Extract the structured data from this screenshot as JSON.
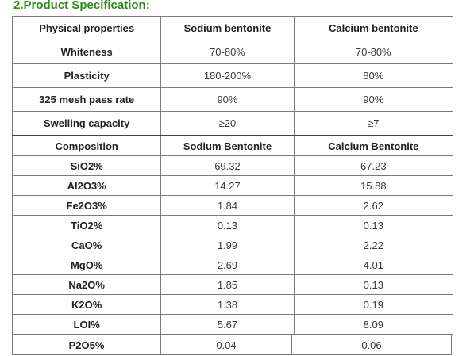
{
  "title": "2.Product Specification:",
  "physical": {
    "headers": [
      "Physical properties",
      "Sodium bentonite",
      "Calcium bentonite"
    ],
    "rows": [
      {
        "label": "Whiteness",
        "sodium": "70-80%",
        "calcium": "70-80%"
      },
      {
        "label": "Plasticity",
        "sodium": "180-200%",
        "calcium": "80%"
      },
      {
        "label": "325 mesh pass rate",
        "sodium": "90%",
        "calcium": "90%"
      },
      {
        "label": "Swelling capacity",
        "sodium": "≥20",
        "calcium": "≥7"
      }
    ]
  },
  "composition": {
    "headers": [
      "Composition",
      "Sodium Bentonite",
      "Calcium Bentonite"
    ],
    "rows": [
      {
        "label": "SiO2%",
        "sodium": "69.32",
        "calcium": "67.23"
      },
      {
        "label": "Al2O3%",
        "sodium": "14.27",
        "calcium": "15.88"
      },
      {
        "label": "Fe2O3%",
        "sodium": "1.84",
        "calcium": "2.62"
      },
      {
        "label": "TiO2%",
        "sodium": "0.13",
        "calcium": "0.13"
      },
      {
        "label": "CaO%",
        "sodium": "1.99",
        "calcium": "2.22"
      },
      {
        "label": "MgO%",
        "sodium": "2.69",
        "calcium": "4.01"
      },
      {
        "label": "Na2O%",
        "sodium": "1.85",
        "calcium": "0.13"
      },
      {
        "label": "K2O%",
        "sodium": "1.38",
        "calcium": "0.19"
      },
      {
        "label": "LOI%",
        "sodium": "5.67",
        "calcium": "8.09"
      }
    ],
    "last_row": {
      "label": "P2O5%",
      "sodium": "0.04",
      "calcium": "0.06"
    }
  },
  "colors": {
    "title": "#2e8b1e",
    "border": "#7a7a7a",
    "text": "#3a3a3a"
  }
}
